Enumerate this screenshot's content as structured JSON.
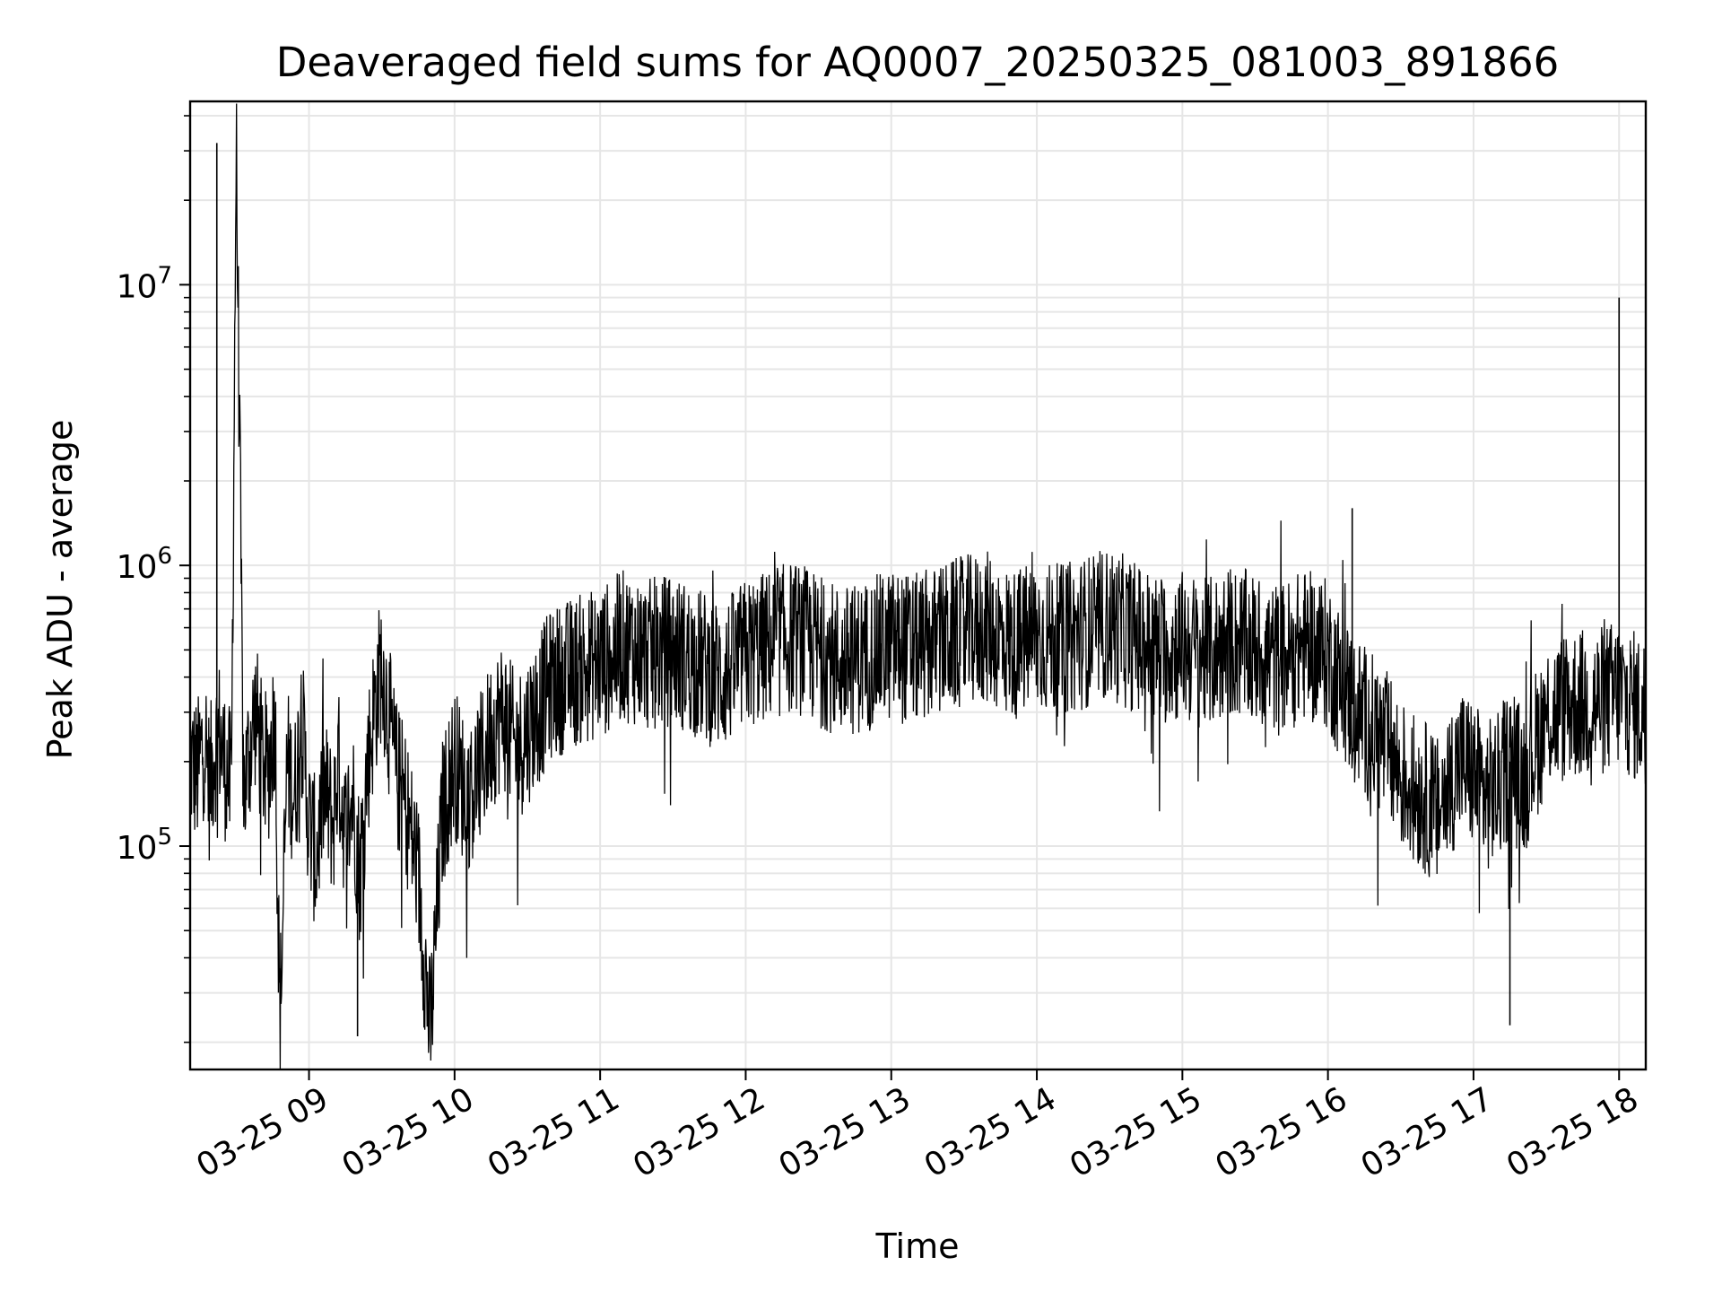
{
  "chart_data": {
    "type": "line",
    "title": "Deaveraged field sums for AQ0007_20250325_081003_891866",
    "xlabel": "Time",
    "ylabel": "Peak ADU - average",
    "yscale": "log",
    "ylim": [
      16000,
      45000000
    ],
    "xlim": [
      "2025-03-25 08:11",
      "2025-03-25 18:11"
    ],
    "grid": true,
    "line_color": "#000000",
    "grid_color": "#e6e6e6",
    "x_ticks": [
      {
        "t": "2025-03-25 09:00",
        "label": "03-25 09"
      },
      {
        "t": "2025-03-25 10:00",
        "label": "03-25 10"
      },
      {
        "t": "2025-03-25 11:00",
        "label": "03-25 11"
      },
      {
        "t": "2025-03-25 12:00",
        "label": "03-25 12"
      },
      {
        "t": "2025-03-25 13:00",
        "label": "03-25 13"
      },
      {
        "t": "2025-03-25 14:00",
        "label": "03-25 14"
      },
      {
        "t": "2025-03-25 15:00",
        "label": "03-25 15"
      },
      {
        "t": "2025-03-25 16:00",
        "label": "03-25 16"
      },
      {
        "t": "2025-03-25 17:00",
        "label": "03-25 17"
      },
      {
        "t": "2025-03-25 18:00",
        "label": "03-25 18"
      }
    ],
    "y_ticks": [
      {
        "value": 100000,
        "base": "10",
        "exp": "5"
      },
      {
        "value": 1000000,
        "base": "10",
        "exp": "6"
      },
      {
        "value": 10000000,
        "base": "10",
        "exp": "7"
      }
    ],
    "series": [
      {
        "x": [
          "2025-03-25 08:11",
          "2025-03-25 08:14",
          "2025-03-25 08:17",
          "2025-03-25 08:19",
          "2025-03-25 08:21",
          "2025-03-25 08:23",
          "2025-03-25 08:25",
          "2025-03-25 08:28",
          "2025-03-25 08:30",
          "2025-03-25 08:33",
          "2025-03-25 08:36",
          "2025-03-25 08:38",
          "2025-03-25 08:40",
          "2025-03-25 08:43",
          "2025-03-25 08:46",
          "2025-03-25 08:48",
          "2025-03-25 08:51",
          "2025-03-25 08:54",
          "2025-03-25 08:57",
          "2025-03-25 09:00",
          "2025-03-25 09:03",
          "2025-03-25 09:06",
          "2025-03-25 09:10",
          "2025-03-25 09:12",
          "2025-03-25 09:15",
          "2025-03-25 09:18",
          "2025-03-25 09:21",
          "2025-03-25 09:24",
          "2025-03-25 09:27",
          "2025-03-25 09:30",
          "2025-03-25 09:33",
          "2025-03-25 09:36",
          "2025-03-25 09:40",
          "2025-03-25 09:45",
          "2025-03-25 09:50",
          "2025-03-25 09:55",
          "2025-03-25 10:00",
          "2025-03-25 10:05",
          "2025-03-25 10:10",
          "2025-03-25 10:15",
          "2025-03-25 10:20",
          "2025-03-25 10:25",
          "2025-03-25 10:30",
          "2025-03-25 10:40",
          "2025-03-25 10:50",
          "2025-03-25 11:00",
          "2025-03-25 11:10",
          "2025-03-25 11:20",
          "2025-03-25 11:30",
          "2025-03-25 11:40",
          "2025-03-25 11:50",
          "2025-03-25 12:00",
          "2025-03-25 12:10",
          "2025-03-25 12:20",
          "2025-03-25 12:30",
          "2025-03-25 12:40",
          "2025-03-25 12:50",
          "2025-03-25 13:00",
          "2025-03-25 13:10",
          "2025-03-25 13:20",
          "2025-03-25 13:30",
          "2025-03-25 13:40",
          "2025-03-25 13:50",
          "2025-03-25 14:00",
          "2025-03-25 14:10",
          "2025-03-25 14:20",
          "2025-03-25 14:30",
          "2025-03-25 14:40",
          "2025-03-25 14:50",
          "2025-03-25 15:00",
          "2025-03-25 15:10",
          "2025-03-25 15:20",
          "2025-03-25 15:30",
          "2025-03-25 15:40",
          "2025-03-25 15:50",
          "2025-03-25 16:00",
          "2025-03-25 16:05",
          "2025-03-25 16:10",
          "2025-03-25 16:15",
          "2025-03-25 16:20",
          "2025-03-25 16:25",
          "2025-03-25 16:30",
          "2025-03-25 16:35",
          "2025-03-25 16:40",
          "2025-03-25 16:45",
          "2025-03-25 16:50",
          "2025-03-25 16:55",
          "2025-03-25 17:00",
          "2025-03-25 17:05",
          "2025-03-25 17:10",
          "2025-03-25 17:15",
          "2025-03-25 17:20",
          "2025-03-25 17:30",
          "2025-03-25 17:40",
          "2025-03-25 17:50",
          "2025-03-25 18:00",
          "2025-03-25 18:05",
          "2025-03-25 18:11"
        ],
        "y": [
          200000,
          180000,
          250000,
          160000,
          220000,
          250000,
          200000,
          160000,
          32000000,
          150000,
          240000,
          300000,
          220000,
          180000,
          300000,
          23000,
          200000,
          150000,
          280000,
          120000,
          90000,
          160000,
          120000,
          200000,
          110000,
          150000,
          80000,
          190000,
          310000,
          450000,
          280000,
          180000,
          140000,
          80000,
          21000,
          130000,
          200000,
          150000,
          180000,
          250000,
          300000,
          220000,
          260000,
          380000,
          420000,
          450000,
          520000,
          480000,
          500000,
          450000,
          400000,
          480000,
          520000,
          560000,
          500000,
          450000,
          480000,
          520000,
          500000,
          540000,
          580000,
          600000,
          520000,
          560000,
          540000,
          580000,
          620000,
          560000,
          500000,
          520000,
          480000,
          540000,
          500000,
          460000,
          520000,
          480000,
          380000,
          320000,
          280000,
          250000,
          220000,
          180000,
          160000,
          150000,
          130000,
          170000,
          200000,
          180000,
          150000,
          160000,
          200000,
          170000,
          290000,
          320000,
          320000,
          350000,
          320000,
          300000
        ]
      }
    ],
    "notable_points": [
      {
        "t": "2025-03-25 08:22",
        "value": 32000000
      },
      {
        "t": "2025-03-25 18:00",
        "value": 9000000
      },
      {
        "t": "2025-03-25 16:10",
        "value": 1600000
      },
      {
        "t": "2025-03-25 17:15",
        "value": 23000
      },
      {
        "t": "2025-03-25 09:20",
        "value": 21000
      }
    ]
  }
}
